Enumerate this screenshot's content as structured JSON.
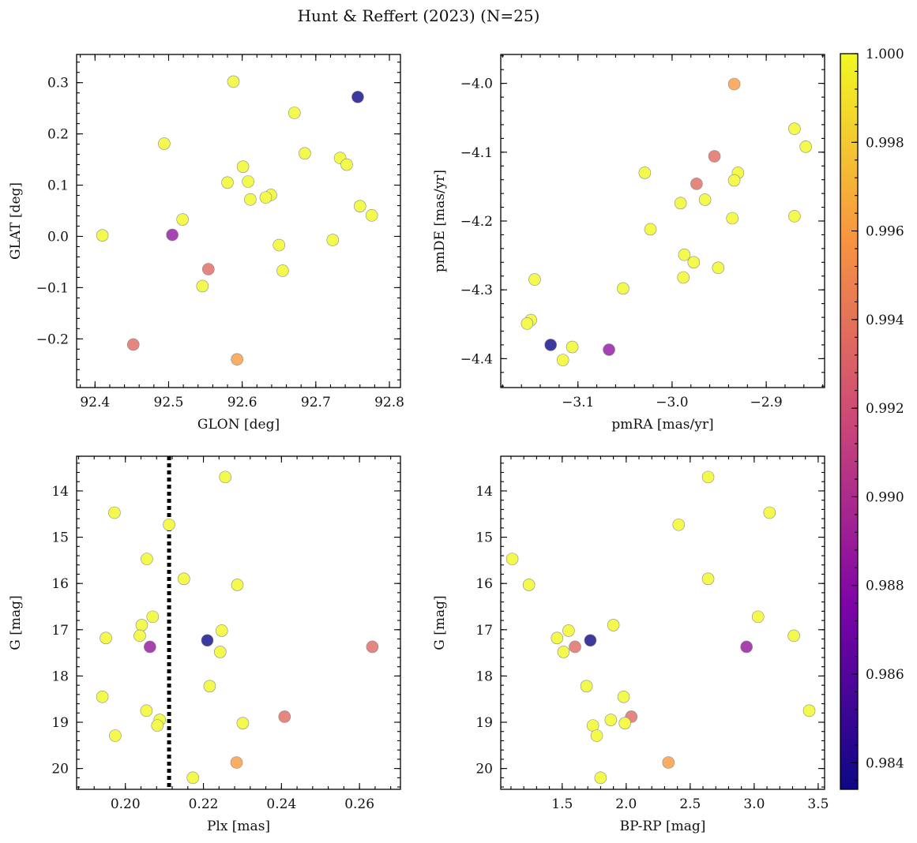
{
  "chart_data": {
    "type": "scatter",
    "title": "Hunt & Reffert (2023) (N=25)",
    "colormap": "plasma",
    "colorbar": {
      "min": 0.9834,
      "max": 1.0,
      "ticks": [
        0.984,
        0.986,
        0.988,
        0.99,
        0.992,
        0.994,
        0.996,
        0.998,
        1.0
      ],
      "tick_labels": [
        "0.984",
        "0.986",
        "0.988",
        "0.990",
        "0.992",
        "0.994",
        "0.996",
        "0.998",
        "1.000"
      ]
    },
    "panels": [
      {
        "xlabel": "GLON [deg]",
        "ylabel": "GLAT [deg]",
        "xlim": [
          92.375,
          92.815
        ],
        "ylim": [
          -0.295,
          0.355
        ],
        "xticks": [
          92.4,
          92.5,
          92.6,
          92.7,
          92.8
        ],
        "xtick_labels": [
          "92.4",
          "92.5",
          "92.6",
          "92.7",
          "92.8"
        ],
        "xminor": 0.02,
        "yticks": [
          -0.2,
          -0.1,
          0.0,
          0.1,
          0.2,
          0.3
        ],
        "ytick_labels": [
          "−0.2",
          "−0.1",
          "0.0",
          "0.1",
          "0.2",
          "0.3"
        ],
        "yminor": 0.02,
        "yinvert": false,
        "points": [
          [
            92.588,
            0.302,
            1.0
          ],
          [
            92.757,
            0.272,
            0.9834
          ],
          [
            92.671,
            0.241,
            1.0
          ],
          [
            92.494,
            0.181,
            1.0
          ],
          [
            92.685,
            0.162,
            1.0
          ],
          [
            92.733,
            0.153,
            1.0
          ],
          [
            92.742,
            0.14,
            1.0
          ],
          [
            92.601,
            0.136,
            1.0
          ],
          [
            92.58,
            0.105,
            1.0
          ],
          [
            92.608,
            0.107,
            1.0
          ],
          [
            92.639,
            0.081,
            1.0
          ],
          [
            92.632,
            0.076,
            1.0
          ],
          [
            92.611,
            0.072,
            1.0
          ],
          [
            92.76,
            0.059,
            1.0
          ],
          [
            92.776,
            0.041,
            1.0
          ],
          [
            92.519,
            0.033,
            1.0
          ],
          [
            92.41,
            0.002,
            1.0
          ],
          [
            92.505,
            0.003,
            0.9885
          ],
          [
            92.723,
            -0.007,
            1.0
          ],
          [
            92.65,
            -0.017,
            1.0
          ],
          [
            92.554,
            -0.064,
            0.9935
          ],
          [
            92.655,
            -0.067,
            1.0
          ],
          [
            92.546,
            -0.097,
            1.0
          ],
          [
            92.452,
            -0.211,
            0.9935
          ],
          [
            92.593,
            -0.24,
            0.996
          ]
        ]
      },
      {
        "xlabel": "pmRA [mas/yr]",
        "ylabel": "pmDE [mas/yr]",
        "xlim": [
          -3.182,
          -2.838
        ],
        "ylim": [
          -4.442,
          -3.958
        ],
        "xticks": [
          -3.1,
          -3.0,
          -2.9
        ],
        "xtick_labels": [
          "−3.1",
          "−3.0",
          "−2.9"
        ],
        "xminor": 0.02,
        "yticks": [
          -4.4,
          -4.3,
          -4.2,
          -4.1,
          -4.0
        ],
        "ytick_labels": [
          "−4.4",
          "−4.3",
          "−4.2",
          "−4.1",
          "−4.0"
        ],
        "yminor": 0.02,
        "yinvert": false,
        "points": [
          [
            -2.934,
            -4.001,
            0.996
          ],
          [
            -2.87,
            -4.066,
            1.0
          ],
          [
            -2.858,
            -4.092,
            1.0
          ],
          [
            -2.955,
            -4.106,
            0.9935
          ],
          [
            -3.029,
            -4.13,
            1.0
          ],
          [
            -2.93,
            -4.13,
            1.0
          ],
          [
            -2.974,
            -4.146,
            0.9935
          ],
          [
            -2.934,
            -4.141,
            1.0
          ],
          [
            -2.991,
            -4.174,
            1.0
          ],
          [
            -2.965,
            -4.169,
            1.0
          ],
          [
            -2.87,
            -4.193,
            1.0
          ],
          [
            -2.936,
            -4.196,
            1.0
          ],
          [
            -3.023,
            -4.212,
            1.0
          ],
          [
            -2.987,
            -4.249,
            1.0
          ],
          [
            -2.977,
            -4.26,
            1.0
          ],
          [
            -2.951,
            -4.268,
            1.0
          ],
          [
            -2.988,
            -4.282,
            1.0
          ],
          [
            -3.146,
            -4.285,
            1.0
          ],
          [
            -3.052,
            -4.298,
            1.0
          ],
          [
            -3.15,
            -4.344,
            1.0
          ],
          [
            -3.154,
            -4.349,
            1.0
          ],
          [
            -3.129,
            -4.38,
            0.9834
          ],
          [
            -3.106,
            -4.383,
            1.0
          ],
          [
            -3.067,
            -4.387,
            0.9885
          ],
          [
            -3.116,
            -4.402,
            1.0
          ]
        ]
      },
      {
        "xlabel": "Plx [mas]",
        "ylabel": "G [mag]",
        "xlim": [
          0.1875,
          0.2705
        ],
        "ylim": [
          13.25,
          20.45
        ],
        "xticks": [
          0.2,
          0.22,
          0.24,
          0.26
        ],
        "xtick_labels": [
          "0.20",
          "0.22",
          "0.24",
          "0.26"
        ],
        "xminor": 0.004,
        "yticks": [
          14,
          15,
          16,
          17,
          18,
          19,
          20
        ],
        "ytick_labels": [
          "14",
          "15",
          "16",
          "17",
          "18",
          "19",
          "20"
        ],
        "yminor": 0.2,
        "yinvert": true,
        "vline": 0.2112,
        "points": [
          [
            0.2256,
            13.7,
            1.0
          ],
          [
            0.1972,
            14.47,
            1.0
          ],
          [
            0.2112,
            14.73,
            1.0
          ],
          [
            0.2055,
            15.47,
            1.0
          ],
          [
            0.215,
            15.9,
            1.0
          ],
          [
            0.2287,
            16.03,
            1.0
          ],
          [
            0.207,
            16.72,
            1.0
          ],
          [
            0.2042,
            16.9,
            1.0
          ],
          [
            0.2247,
            17.02,
            1.0
          ],
          [
            0.2037,
            17.13,
            1.0
          ],
          [
            0.195,
            17.18,
            1.0
          ],
          [
            0.221,
            17.23,
            0.9834
          ],
          [
            0.2063,
            17.37,
            0.9885
          ],
          [
            0.2633,
            17.37,
            0.9935
          ],
          [
            0.2243,
            17.48,
            1.0
          ],
          [
            0.2216,
            18.22,
            1.0
          ],
          [
            0.1941,
            18.45,
            1.0
          ],
          [
            0.2054,
            18.75,
            1.0
          ],
          [
            0.2408,
            18.88,
            0.9935
          ],
          [
            0.2088,
            18.95,
            1.0
          ],
          [
            0.2301,
            19.02,
            1.0
          ],
          [
            0.2082,
            19.07,
            1.0
          ],
          [
            0.1974,
            19.29,
            1.0
          ],
          [
            0.2285,
            19.87,
            0.996
          ],
          [
            0.2173,
            20.2,
            1.0
          ]
        ]
      },
      {
        "xlabel": "BP-RP [mag]",
        "ylabel": "G [mag]",
        "xlim": [
          1.02,
          3.55
        ],
        "ylim": [
          13.25,
          20.45
        ],
        "xticks": [
          1.5,
          2.0,
          2.5,
          3.0,
          3.5
        ],
        "xtick_labels": [
          "1.5",
          "2.0",
          "2.5",
          "3.0",
          "3.5"
        ],
        "xminor": 0.1,
        "yticks": [
          14,
          15,
          16,
          17,
          18,
          19,
          20
        ],
        "ytick_labels": [
          "14",
          "15",
          "16",
          "17",
          "18",
          "19",
          "20"
        ],
        "yminor": 0.2,
        "yinvert": true,
        "points": [
          [
            2.64,
            13.7,
            1.0
          ],
          [
            3.12,
            14.47,
            1.0
          ],
          [
            2.41,
            14.73,
            1.0
          ],
          [
            1.11,
            15.47,
            1.0
          ],
          [
            2.64,
            15.9,
            1.0
          ],
          [
            1.24,
            16.03,
            1.0
          ],
          [
            3.03,
            16.72,
            1.0
          ],
          [
            1.9,
            16.9,
            1.0
          ],
          [
            1.55,
            17.02,
            1.0
          ],
          [
            1.46,
            17.18,
            1.0
          ],
          [
            3.31,
            17.13,
            1.0
          ],
          [
            1.72,
            17.23,
            0.9834
          ],
          [
            2.94,
            17.37,
            0.9885
          ],
          [
            1.6,
            17.37,
            0.9935
          ],
          [
            1.51,
            17.48,
            1.0
          ],
          [
            1.69,
            18.22,
            1.0
          ],
          [
            1.98,
            18.45,
            1.0
          ],
          [
            3.43,
            18.75,
            1.0
          ],
          [
            2.04,
            18.88,
            0.9935
          ],
          [
            1.88,
            18.95,
            1.0
          ],
          [
            1.99,
            19.02,
            1.0
          ],
          [
            1.74,
            19.07,
            1.0
          ],
          [
            1.77,
            19.29,
            1.0
          ],
          [
            2.33,
            19.87,
            0.996
          ],
          [
            1.8,
            20.2,
            1.0
          ]
        ]
      }
    ]
  }
}
